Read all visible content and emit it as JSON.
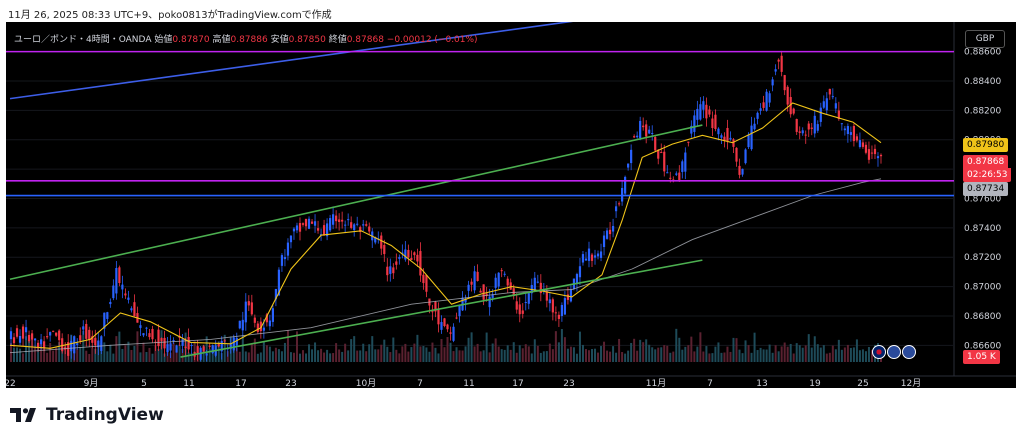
{
  "topline": "11月 26, 2025 08:33 UTC+9、poko0813がTradingView.comで作成",
  "header": {
    "symbol": "ユーロ／ポンド・4時間・OANDA",
    "open_label": "始値",
    "open": "0.87870",
    "high_label": "高値",
    "high": "0.87886",
    "low_label": "安値",
    "low": "0.87850",
    "close_label": "終値",
    "close": "0.87868",
    "change": "−0.00012 (−0.01%)"
  },
  "currency_button": "GBP",
  "price_labels": {
    "yellow_ma": "0.87980",
    "last_price": "0.87868",
    "countdown": "02:26:53",
    "gray_ma": "0.87734",
    "volume": "1.05 K"
  },
  "footer_brand": "TradingView",
  "colors": {
    "up": "#2962ff",
    "down": "#f23645",
    "yellow_ma": "#f0c419",
    "gray_ma": "#b2b5be",
    "channel": "#4caf50",
    "blue_line": "#2962ff",
    "magenta_line": "#c023f0",
    "background": "#000000"
  },
  "chart_data": {
    "type": "candlestick",
    "instrument": "EUR/GBP",
    "timeframe": "4h",
    "ylim": [
      0.865,
      0.8872
    ],
    "y_ticks": [
      "0.86600",
      "0.86800",
      "0.87000",
      "0.87200",
      "0.87400",
      "0.87600",
      "0.87800",
      "0.88000",
      "0.88200",
      "0.88400",
      "0.88600"
    ],
    "x_ticks": [
      "22",
      "9月",
      "5",
      "11",
      "17",
      "23",
      "10月",
      "7",
      "11",
      "17",
      "23",
      "11月",
      "7",
      "13",
      "19",
      "25",
      "12月"
    ],
    "horizontal_lines": [
      {
        "color": "magenta",
        "price": 0.886
      },
      {
        "color": "magenta",
        "price": 0.8772
      },
      {
        "color": "blue",
        "price": 0.8762
      }
    ],
    "price_path": [
      [
        0,
        0.8665
      ],
      [
        18,
        0.8668
      ],
      [
        30,
        0.8657
      ],
      [
        45,
        0.8668
      ],
      [
        60,
        0.8656
      ],
      [
        75,
        0.867
      ],
      [
        90,
        0.866
      ],
      [
        100,
        0.869
      ],
      [
        108,
        0.8708
      ],
      [
        118,
        0.8693
      ],
      [
        130,
        0.8672
      ],
      [
        145,
        0.8666
      ],
      [
        160,
        0.8658
      ],
      [
        175,
        0.8663
      ],
      [
        190,
        0.8655
      ],
      [
        210,
        0.866
      ],
      [
        225,
        0.8662
      ],
      [
        238,
        0.8688
      ],
      [
        250,
        0.8672
      ],
      [
        262,
        0.868
      ],
      [
        272,
        0.8718
      ],
      [
        285,
        0.8736
      ],
      [
        300,
        0.8744
      ],
      [
        315,
        0.8737
      ],
      [
        328,
        0.8748
      ],
      [
        340,
        0.8742
      ],
      [
        355,
        0.8738
      ],
      [
        368,
        0.8732
      ],
      [
        380,
        0.8708
      ],
      [
        395,
        0.8726
      ],
      [
        408,
        0.872
      ],
      [
        418,
        0.869
      ],
      [
        430,
        0.8675
      ],
      [
        440,
        0.8665
      ],
      [
        452,
        0.869
      ],
      [
        465,
        0.8706
      ],
      [
        478,
        0.8688
      ],
      [
        490,
        0.8715
      ],
      [
        502,
        0.8693
      ],
      [
        512,
        0.8682
      ],
      [
        525,
        0.8705
      ],
      [
        538,
        0.869
      ],
      [
        550,
        0.8682
      ],
      [
        562,
        0.87
      ],
      [
        575,
        0.8722
      ],
      [
        588,
        0.8722
      ],
      [
        600,
        0.8738
      ],
      [
        612,
        0.8768
      ],
      [
        620,
        0.8795
      ],
      [
        630,
        0.8812
      ],
      [
        642,
        0.88
      ],
      [
        655,
        0.8781
      ],
      [
        668,
        0.8772
      ],
      [
        680,
        0.8808
      ],
      [
        692,
        0.8824
      ],
      [
        705,
        0.8808
      ],
      [
        718,
        0.88
      ],
      [
        730,
        0.8778
      ],
      [
        742,
        0.881
      ],
      [
        755,
        0.8828
      ],
      [
        768,
        0.8856
      ],
      [
        775,
        0.883
      ],
      [
        790,
        0.8802
      ],
      [
        805,
        0.8812
      ],
      [
        818,
        0.8834
      ],
      [
        830,
        0.8812
      ],
      [
        843,
        0.8802
      ],
      [
        855,
        0.879
      ],
      [
        868,
        0.8787
      ]
    ],
    "ma_yellow": [
      [
        0,
        0.866
      ],
      [
        40,
        0.8658
      ],
      [
        80,
        0.8664
      ],
      [
        110,
        0.8682
      ],
      [
        140,
        0.8676
      ],
      [
        180,
        0.8662
      ],
      [
        220,
        0.8661
      ],
      [
        250,
        0.8672
      ],
      [
        280,
        0.8712
      ],
      [
        310,
        0.8735
      ],
      [
        350,
        0.8738
      ],
      [
        380,
        0.8728
      ],
      [
        410,
        0.8712
      ],
      [
        440,
        0.8688
      ],
      [
        470,
        0.8695
      ],
      [
        500,
        0.87
      ],
      [
        530,
        0.8697
      ],
      [
        560,
        0.8693
      ],
      [
        590,
        0.8708
      ],
      [
        610,
        0.8745
      ],
      [
        630,
        0.8788
      ],
      [
        660,
        0.8797
      ],
      [
        690,
        0.8803
      ],
      [
        720,
        0.8798
      ],
      [
        750,
        0.8808
      ],
      [
        780,
        0.8825
      ],
      [
        810,
        0.8818
      ],
      [
        840,
        0.8812
      ],
      [
        860,
        0.8802
      ],
      [
        868,
        0.8798
      ]
    ],
    "ma_gray": [
      [
        0,
        0.8655
      ],
      [
        100,
        0.866
      ],
      [
        200,
        0.8664
      ],
      [
        300,
        0.8672
      ],
      [
        400,
        0.8688
      ],
      [
        500,
        0.8696
      ],
      [
        560,
        0.8698
      ],
      [
        620,
        0.8712
      ],
      [
        680,
        0.8732
      ],
      [
        740,
        0.8747
      ],
      [
        800,
        0.8762
      ],
      [
        850,
        0.8771
      ],
      [
        868,
        0.87734
      ]
    ],
    "trend_lines": [
      {
        "color": "blue",
        "from": [
          0,
          0.8828
        ],
        "to": [
          660,
          0.889
        ]
      },
      {
        "color": "green",
        "from": [
          0,
          0.8705
        ],
        "to": [
          690,
          0.881
        ]
      },
      {
        "color": "green",
        "from": [
          170,
          0.8652
        ],
        "to": [
          690,
          0.8718
        ]
      }
    ]
  }
}
